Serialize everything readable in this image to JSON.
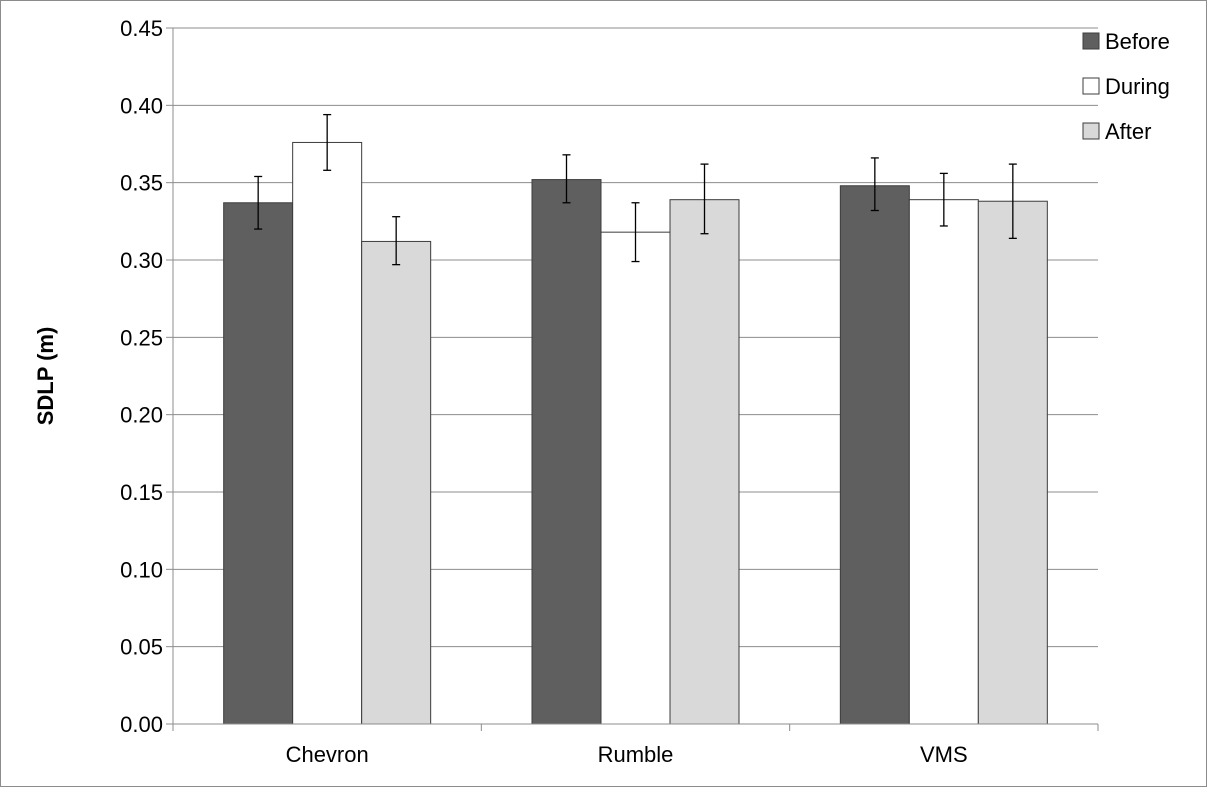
{
  "chart_data": {
    "type": "bar",
    "title": "",
    "xlabel": "",
    "ylabel": "SDLP (m)",
    "ylim": [
      0,
      0.45
    ],
    "ytick_step": 0.05,
    "y_tick_labels": [
      "0.00",
      "0.05",
      "0.10",
      "0.15",
      "0.20",
      "0.25",
      "0.30",
      "0.35",
      "0.40",
      "0.45"
    ],
    "grid": true,
    "legend_position": "top-right",
    "categories": [
      "Chevron",
      "Rumble",
      "VMS"
    ],
    "series": [
      {
        "name": "Before",
        "color": "#5f5f5f",
        "values": [
          0.337,
          0.352,
          0.348
        ],
        "error_low": [
          0.32,
          0.337,
          0.332
        ],
        "error_high": [
          0.354,
          0.368,
          0.366
        ]
      },
      {
        "name": "During",
        "color": "#ffffff",
        "values": [
          0.376,
          0.318,
          0.339
        ],
        "error_low": [
          0.358,
          0.299,
          0.322
        ],
        "error_high": [
          0.394,
          0.337,
          0.356
        ]
      },
      {
        "name": "After",
        "color": "#d9d9d9",
        "values": [
          0.312,
          0.339,
          0.338
        ],
        "error_low": [
          0.297,
          0.317,
          0.314
        ],
        "error_high": [
          0.328,
          0.362,
          0.362
        ]
      }
    ]
  }
}
